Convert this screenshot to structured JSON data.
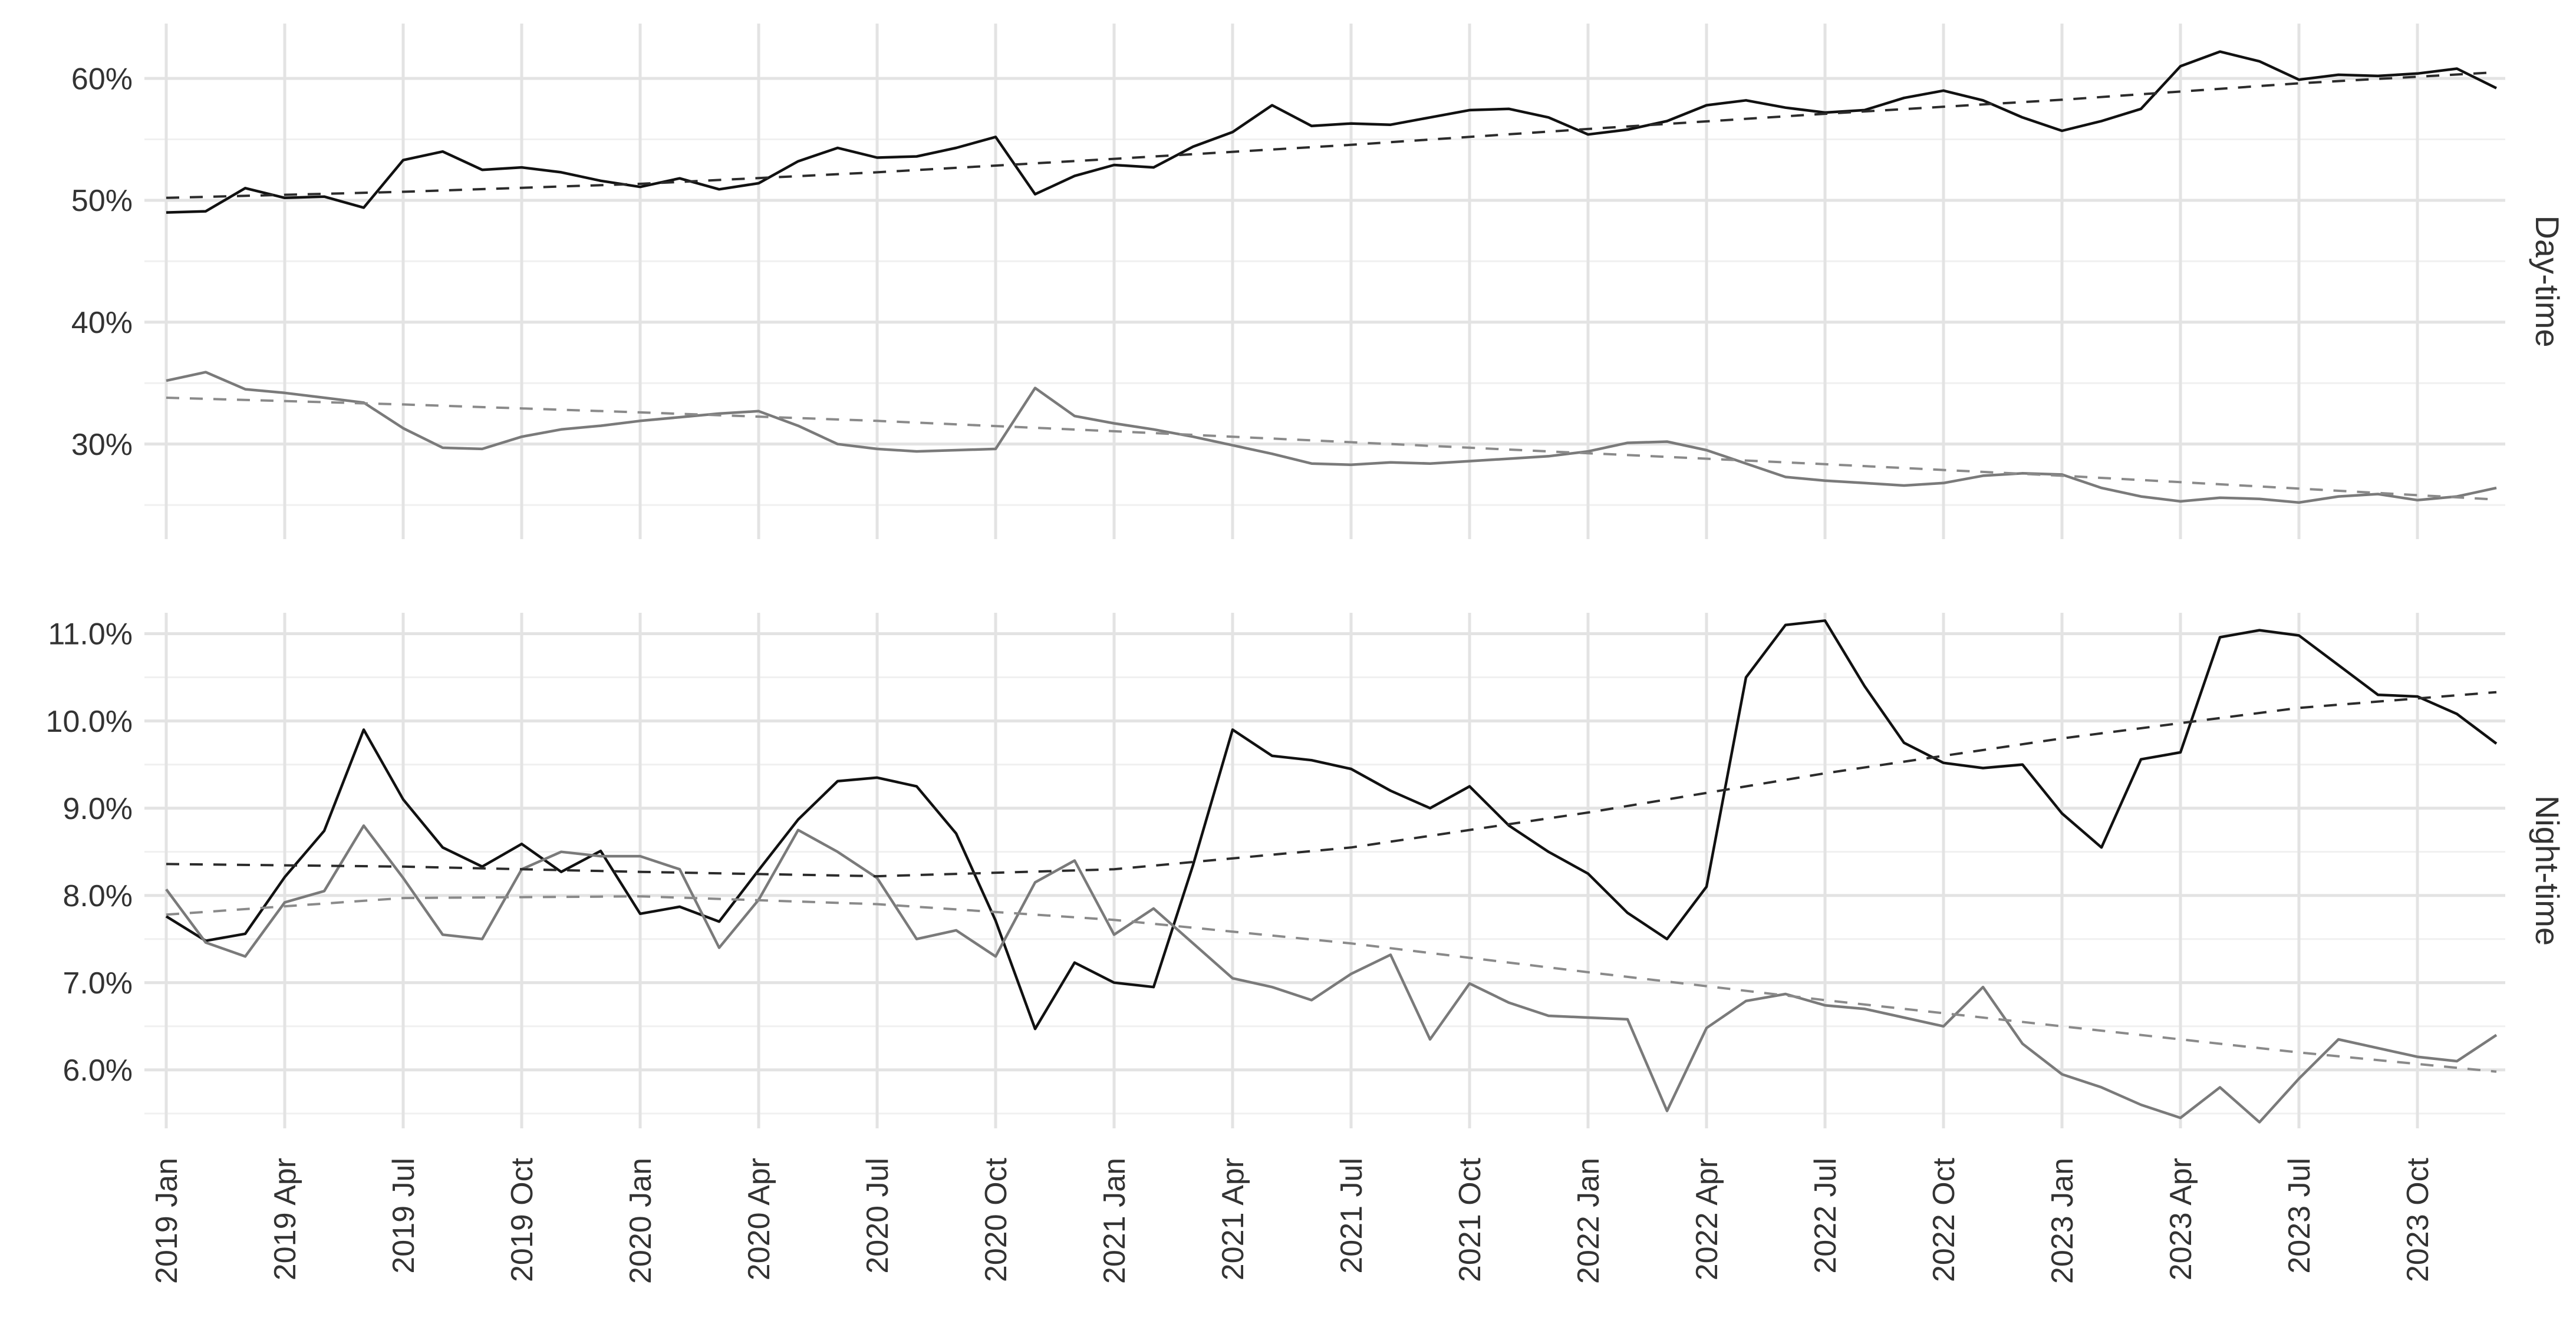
{
  "chart_data": {
    "type": "line",
    "title": "",
    "xlabel": "",
    "ylabel": "",
    "legend": "none",
    "grid": {
      "major_color": "#e3e3e3",
      "minor_color": "#f0f0f0",
      "background": "#ffffff"
    },
    "x_months": [
      "2019-01",
      "2019-02",
      "2019-03",
      "2019-04",
      "2019-05",
      "2019-06",
      "2019-07",
      "2019-08",
      "2019-09",
      "2019-10",
      "2019-11",
      "2019-12",
      "2020-01",
      "2020-02",
      "2020-03",
      "2020-04",
      "2020-05",
      "2020-06",
      "2020-07",
      "2020-08",
      "2020-09",
      "2020-10",
      "2020-11",
      "2020-12",
      "2021-01",
      "2021-02",
      "2021-03",
      "2021-04",
      "2021-05",
      "2021-06",
      "2021-07",
      "2021-08",
      "2021-09",
      "2021-10",
      "2021-11",
      "2021-12",
      "2022-01",
      "2022-02",
      "2022-03",
      "2022-04",
      "2022-05",
      "2022-06",
      "2022-07",
      "2022-08",
      "2022-09",
      "2022-10",
      "2022-11",
      "2022-12",
      "2023-01",
      "2023-02",
      "2023-03",
      "2023-04",
      "2023-05",
      "2023-06",
      "2023-07",
      "2023-08",
      "2023-09",
      "2023-10",
      "2023-11",
      "2023-12"
    ],
    "x_tick_labels": [
      "2019 Jan",
      "2019 Apr",
      "2019 Jul",
      "2019 Oct",
      "2020 Jan",
      "2020 Apr",
      "2020 Jul",
      "2020 Oct",
      "2021 Jan",
      "2021 Apr",
      "2021 Jul",
      "2021 Oct",
      "2022 Jan",
      "2022 Apr",
      "2022 Jul",
      "2022 Oct",
      "2023 Jan",
      "2023 Apr",
      "2023 Jul",
      "2023 Oct"
    ],
    "facets": [
      {
        "label": "Day-time",
        "y_tick_labels": [
          "60%",
          "50%",
          "40%",
          "30%"
        ],
        "y_tick_values": [
          60,
          50,
          40,
          30
        ],
        "y_minor_values": [
          55,
          45,
          35,
          25
        ],
        "ylim": [
          22.2,
          64.5
        ],
        "series": [
          {
            "name": "day-share-black-solid",
            "style": "solid",
            "color": "#111111",
            "width": 4.5,
            "values": [
              49.0,
              49.1,
              51.0,
              50.2,
              50.3,
              49.4,
              53.3,
              54.0,
              52.5,
              52.7,
              52.3,
              51.6,
              51.1,
              51.8,
              50.9,
              51.4,
              53.2,
              54.3,
              53.5,
              53.6,
              54.3,
              55.2,
              50.5,
              52.0,
              52.9,
              52.7,
              54.4,
              55.6,
              57.8,
              56.1,
              56.3,
              56.2,
              56.8,
              57.4,
              57.5,
              56.8,
              55.4,
              55.8,
              56.5,
              57.8,
              58.2,
              57.6,
              57.2,
              57.4,
              58.4,
              59.0,
              58.2,
              56.8,
              55.7,
              56.5,
              57.5,
              61.0,
              62.2,
              61.4,
              59.9,
              60.3,
              60.2,
              60.4,
              60.8,
              59.2
            ]
          },
          {
            "name": "day-share-gray-solid",
            "style": "solid",
            "color": "#7a7a7a",
            "width": 4.5,
            "values": [
              35.2,
              35.9,
              34.5,
              34.2,
              33.8,
              33.4,
              31.3,
              29.7,
              29.6,
              30.6,
              31.2,
              31.5,
              31.9,
              32.2,
              32.5,
              32.7,
              31.5,
              30.0,
              29.6,
              29.4,
              29.5,
              29.6,
              34.6,
              32.3,
              31.7,
              31.2,
              30.6,
              29.9,
              29.2,
              28.4,
              28.3,
              28.5,
              28.4,
              28.6,
              28.8,
              29.0,
              29.4,
              30.1,
              30.2,
              29.5,
              28.4,
              27.3,
              27.0,
              26.8,
              26.6,
              26.8,
              27.4,
              27.6,
              27.5,
              26.4,
              25.7,
              25.3,
              25.6,
              25.5,
              25.2,
              25.7,
              25.9,
              25.4,
              25.7,
              26.4
            ]
          },
          {
            "name": "day-black-trend-dashed",
            "style": "dashed",
            "color": "#2b2b2b",
            "width": 4,
            "idx": [
              0,
              6,
              12,
              18,
              24,
              30,
              36,
              42,
              48,
              54,
              59
            ],
            "values": [
              50.2,
              50.7,
              51.35,
              52.3,
              53.4,
              54.55,
              55.85,
              57.1,
              58.25,
              59.6,
              60.5
            ]
          },
          {
            "name": "day-gray-trend-dashed",
            "style": "dashed",
            "color": "#8a8a8a",
            "width": 4,
            "idx": [
              0,
              6,
              12,
              18,
              24,
              30,
              36,
              42,
              48,
              54,
              59
            ],
            "values": [
              33.8,
              33.25,
              32.6,
              31.9,
              31.05,
              30.15,
              29.25,
              28.35,
              27.4,
              26.35,
              25.45
            ]
          }
        ]
      },
      {
        "label": "Night-time",
        "y_tick_labels": [
          "11.0%",
          "10.0%",
          "9.0%",
          "8.0%",
          "7.0%",
          "6.0%"
        ],
        "y_tick_values": [
          11,
          10,
          9,
          8,
          7,
          6
        ],
        "y_minor_values": [
          10.5,
          9.5,
          8.5,
          7.5,
          6.5,
          5.5
        ],
        "ylim": [
          5.33,
          11.24
        ],
        "series": [
          {
            "name": "night-share-black-solid",
            "style": "solid",
            "color": "#111111",
            "width": 4.5,
            "values": [
              7.76,
              7.48,
              7.56,
              8.21,
              8.74,
              9.9,
              9.1,
              8.55,
              8.33,
              8.59,
              8.27,
              8.51,
              7.79,
              7.87,
              7.7,
              8.29,
              8.87,
              9.31,
              9.35,
              9.25,
              8.71,
              7.71,
              6.47,
              7.23,
              7.0,
              6.95,
              8.35,
              9.9,
              9.6,
              9.55,
              9.45,
              9.2,
              9.0,
              9.25,
              8.8,
              8.5,
              8.25,
              7.8,
              7.5,
              8.1,
              10.5,
              11.1,
              11.15,
              10.4,
              9.75,
              9.52,
              9.46,
              9.5,
              8.94,
              8.55,
              9.56,
              9.64,
              10.96,
              11.04,
              10.98,
              10.64,
              10.3,
              10.28,
              10.08,
              9.74
            ]
          },
          {
            "name": "night-share-gray-solid",
            "style": "solid",
            "color": "#7a7a7a",
            "width": 4.5,
            "values": [
              8.07,
              7.46,
              7.3,
              7.92,
              8.05,
              8.8,
              8.2,
              7.55,
              7.5,
              8.3,
              8.5,
              8.45,
              8.45,
              8.3,
              7.4,
              7.95,
              8.75,
              8.5,
              8.2,
              7.5,
              7.6,
              7.3,
              8.15,
              8.4,
              7.55,
              7.85,
              7.45,
              7.05,
              6.95,
              6.8,
              7.1,
              7.32,
              6.35,
              6.99,
              6.77,
              6.62,
              6.6,
              6.58,
              5.53,
              6.48,
              6.79,
              6.87,
              6.74,
              6.7,
              6.6,
              6.5,
              6.95,
              6.3,
              5.95,
              5.8,
              5.6,
              5.45,
              5.8,
              5.4,
              5.9,
              6.35,
              6.25,
              6.15,
              6.1,
              6.4
            ]
          },
          {
            "name": "night-black-trend-dashed",
            "style": "dashed",
            "color": "#2b2b2b",
            "width": 4,
            "idx": [
              0,
              6,
              12,
              18,
              24,
              30,
              36,
              42,
              48,
              54,
              59
            ],
            "values": [
              8.36,
              8.33,
              8.27,
              8.22,
              8.3,
              8.55,
              8.95,
              9.4,
              9.8,
              10.15,
              10.33
            ]
          },
          {
            "name": "night-gray-trend-dashed",
            "style": "dashed",
            "color": "#8a8a8a",
            "width": 4,
            "idx": [
              0,
              6,
              12,
              18,
              24,
              30,
              36,
              42,
              48,
              54,
              59
            ],
            "values": [
              7.78,
              7.97,
              7.99,
              7.9,
              7.72,
              7.45,
              7.12,
              6.8,
              6.5,
              6.2,
              5.98
            ]
          }
        ]
      }
    ]
  }
}
